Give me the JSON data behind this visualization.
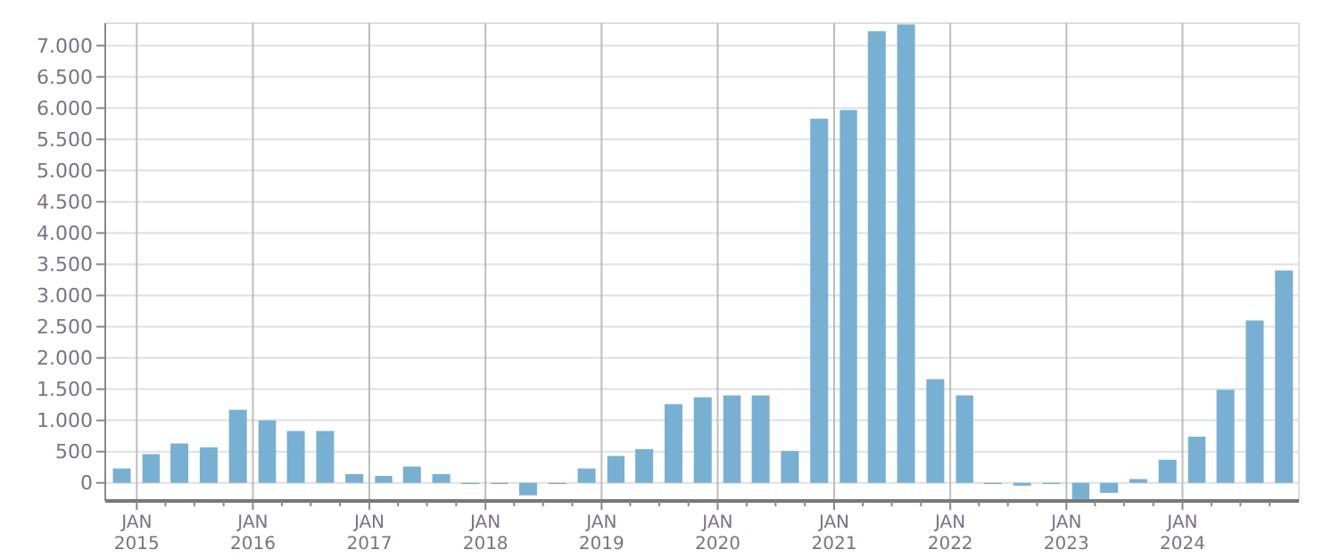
{
  "chart_data": {
    "type": "bar",
    "x": [
      "2014-11-15",
      "2015-02-15",
      "2015-05-15",
      "2015-08-15",
      "2015-11-15",
      "2016-02-15",
      "2016-05-15",
      "2016-08-15",
      "2016-11-15",
      "2017-02-15",
      "2017-05-15",
      "2017-08-15",
      "2017-11-15",
      "2018-02-15",
      "2018-05-15",
      "2018-08-15",
      "2018-11-15",
      "2019-02-15",
      "2019-05-15",
      "2019-08-15",
      "2019-11-15",
      "2020-02-15",
      "2020-05-15",
      "2020-08-15",
      "2020-11-15",
      "2021-02-15",
      "2021-05-15",
      "2021-08-15",
      "2021-11-15",
      "2022-02-15",
      "2022-05-15",
      "2022-08-15",
      "2022-11-15",
      "2023-02-15",
      "2023-05-15",
      "2023-08-15",
      "2023-11-15",
      "2024-02-15",
      "2024-05-15",
      "2024-08-15",
      "2024-11-15"
    ],
    "values": [
      230,
      460,
      630,
      570,
      1170,
      1000,
      830,
      830,
      140,
      110,
      260,
      140,
      -20,
      -20,
      -200,
      -20,
      230,
      430,
      540,
      1260,
      1370,
      1400,
      1400,
      510,
      5830,
      5970,
      7230,
      7340,
      1660,
      1400,
      -20,
      -45,
      -20,
      -260,
      -160,
      60,
      370,
      740,
      1490,
      2600,
      3400
    ],
    "color": "#77b0d3",
    "xlim": [
      "2014-09-24",
      "2025-01-01"
    ],
    "xticks": [
      {
        "value": "2015-01",
        "label": "JAN\n2015"
      },
      {
        "value": "2015-04",
        "label": null
      },
      {
        "value": "2015-07",
        "label": null
      },
      {
        "value": "2015-10",
        "label": null
      },
      {
        "value": "2016-01",
        "label": "JAN\n2016"
      },
      {
        "value": "2016-04",
        "label": null
      },
      {
        "value": "2016-07",
        "label": null
      },
      {
        "value": "2016-10",
        "label": null
      },
      {
        "value": "2017-01",
        "label": "JAN\n2017"
      },
      {
        "value": "2017-04",
        "label": null
      },
      {
        "value": "2017-07",
        "label": null
      },
      {
        "value": "2017-10",
        "label": null
      },
      {
        "value": "2018-01",
        "label": "JAN\n2018"
      },
      {
        "value": "2018-04",
        "label": null
      },
      {
        "value": "2018-07",
        "label": null
      },
      {
        "value": "2018-10",
        "label": null
      },
      {
        "value": "2019-01",
        "label": "JAN\n2019"
      },
      {
        "value": "2019-04",
        "label": null
      },
      {
        "value": "2019-07",
        "label": null
      },
      {
        "value": "2019-10",
        "label": null
      },
      {
        "value": "2020-01",
        "label": "JAN\n2020"
      },
      {
        "value": "2020-04",
        "label": null
      },
      {
        "value": "2020-07",
        "label": null
      },
      {
        "value": "2020-10",
        "label": null
      },
      {
        "value": "2021-01",
        "label": "JAN\n2021"
      },
      {
        "value": "2021-04",
        "label": null
      },
      {
        "value": "2021-07",
        "label": null
      },
      {
        "value": "2021-10",
        "label": null
      },
      {
        "value": "2022-01",
        "label": "JAN\n2022"
      },
      {
        "value": "2022-04",
        "label": null
      },
      {
        "value": "2022-07",
        "label": null
      },
      {
        "value": "2022-10",
        "label": null
      },
      {
        "value": "2023-01",
        "label": "JAN\n2023"
      },
      {
        "value": "2023-04",
        "label": null
      },
      {
        "value": "2023-07",
        "label": null
      },
      {
        "value": "2023-10",
        "label": null
      },
      {
        "value": "2024-01",
        "label": "JAN\n2024"
      },
      {
        "value": "2024-04",
        "label": null
      },
      {
        "value": "2024-07",
        "label": null
      },
      {
        "value": "2024-10",
        "label": null
      }
    ],
    "ylim": [
      -290,
      7360
    ],
    "yticks": [
      0,
      500,
      {
        "value": 1000,
        "label": "1.000"
      },
      {
        "value": 1500,
        "label": "1.500"
      },
      {
        "value": 2000,
        "label": "2.000"
      },
      {
        "value": 2500,
        "label": "2.500"
      },
      {
        "value": 3000,
        "label": "3.000"
      },
      {
        "value": 3500,
        "label": "3.500"
      },
      {
        "value": 4000,
        "label": "4.000"
      },
      {
        "value": 4500,
        "label": "4.500"
      },
      {
        "value": 5000,
        "label": "5.000"
      },
      {
        "value": 5500,
        "label": "5.500"
      },
      {
        "value": 6000,
        "label": "6.000"
      },
      {
        "value": 6500,
        "label": "6.500"
      },
      {
        "value": 7000,
        "label": "7.000"
      }
    ],
    "grid": true
  }
}
